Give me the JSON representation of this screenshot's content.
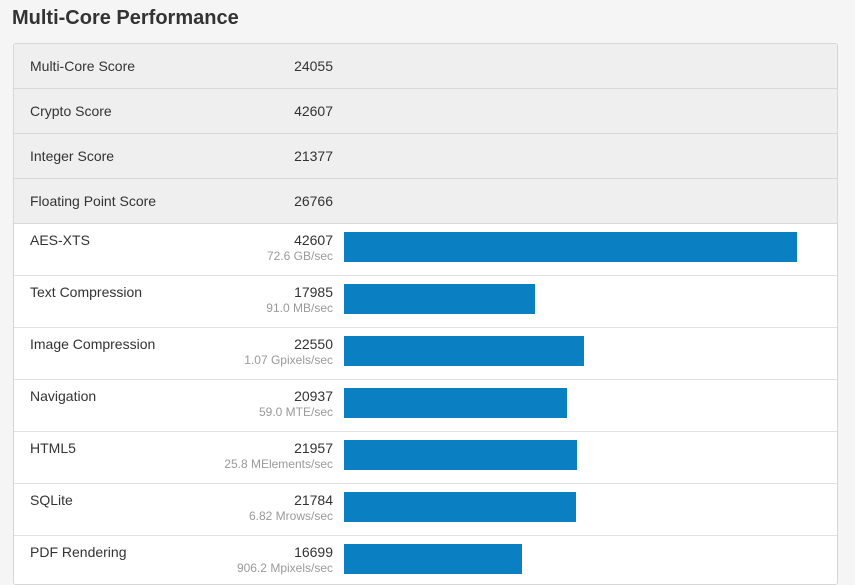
{
  "page": {
    "title": "Multi-Core Performance"
  },
  "colors": {
    "bar": "#0a80c3"
  },
  "scores": [
    {
      "label": "Multi-Core Score",
      "value": "24055"
    },
    {
      "label": "Crypto Score",
      "value": "42607"
    },
    {
      "label": "Integer Score",
      "value": "21377"
    },
    {
      "label": "Floating Point Score",
      "value": "26766"
    }
  ],
  "benchmarks": [
    {
      "label": "AES-XTS",
      "score": "42607",
      "rate": "72.6 GB/sec",
      "value": 42607
    },
    {
      "label": "Text Compression",
      "score": "17985",
      "rate": "91.0 MB/sec",
      "value": 17985
    },
    {
      "label": "Image Compression",
      "score": "22550",
      "rate": "1.07 Gpixels/sec",
      "value": 22550
    },
    {
      "label": "Navigation",
      "score": "20937",
      "rate": "59.0 MTE/sec",
      "value": 20937
    },
    {
      "label": "HTML5",
      "score": "21957",
      "rate": "25.8 MElements/sec",
      "value": 21957
    },
    {
      "label": "SQLite",
      "score": "21784",
      "rate": "6.82 Mrows/sec",
      "value": 21784
    },
    {
      "label": "PDF Rendering",
      "score": "16699",
      "rate": "906.2 Mpixels/sec",
      "value": 16699
    }
  ]
}
